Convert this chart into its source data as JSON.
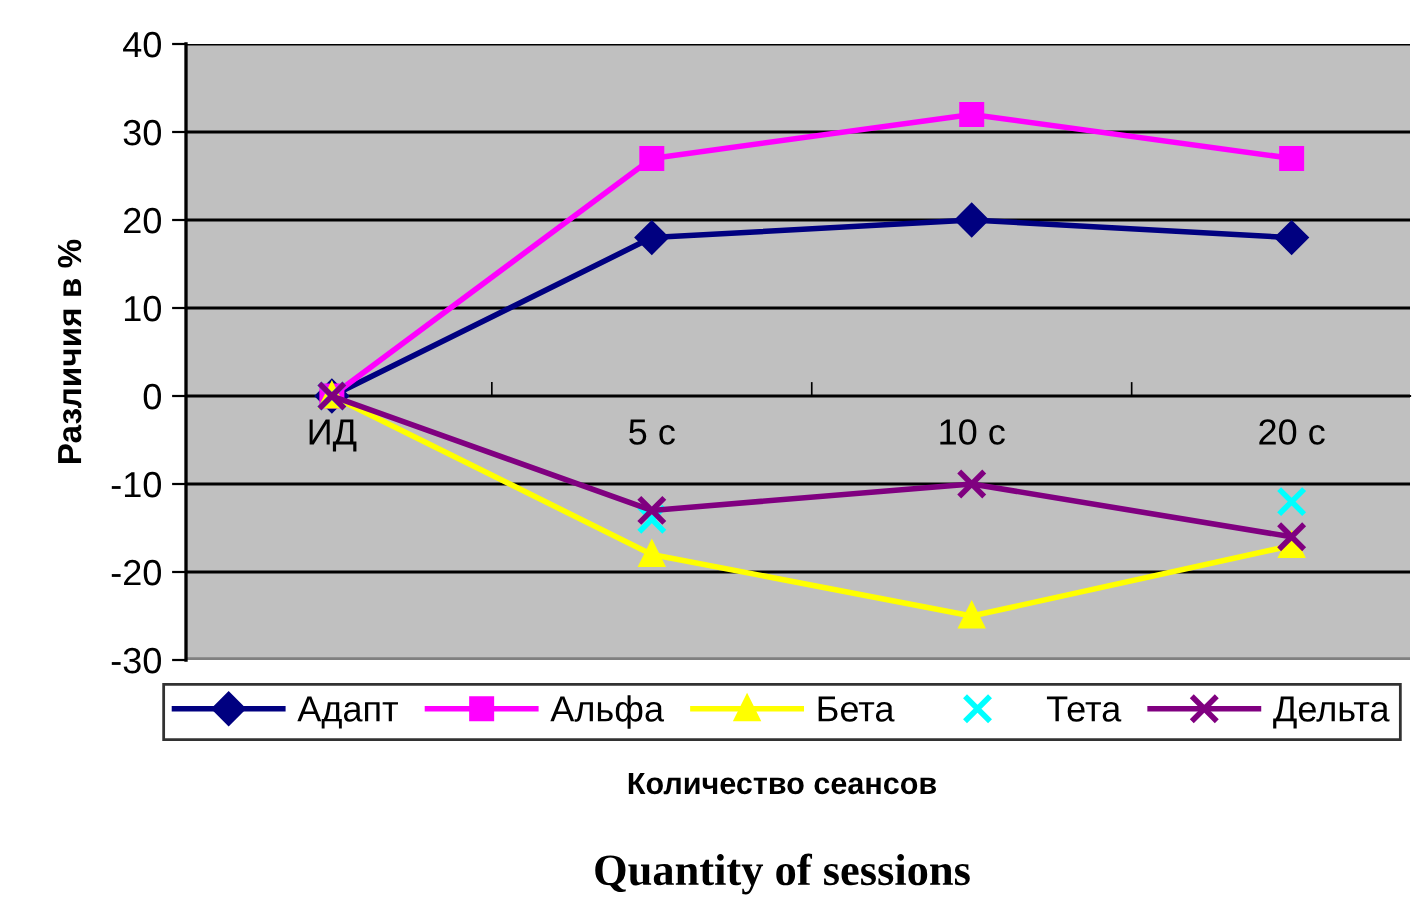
{
  "chart_data": {
    "type": "line",
    "ylabel": "Различия в %",
    "xlabel": "Количество сеансов",
    "annotations": [
      "Quantity of sessions"
    ],
    "categories": [
      "ИД",
      "5 с",
      "10 с",
      "20 с"
    ],
    "series": [
      {
        "name": "Адапт",
        "color": "#000080",
        "marker": "diamond",
        "values": [
          0,
          18,
          20,
          18
        ]
      },
      {
        "name": "Альфа",
        "color": "#ff00ff",
        "marker": "square",
        "values": [
          0,
          27,
          32,
          27
        ]
      },
      {
        "name": "Бета",
        "color": "#ffff00",
        "marker": "triangle",
        "values": [
          0,
          -18,
          -25,
          -17
        ]
      },
      {
        "name": "Тета",
        "color": "#00ffff",
        "type": "scatter",
        "marker": "cross",
        "values": [
          0,
          -14,
          null,
          -12
        ]
      },
      {
        "name": "Дельта",
        "color": "#800080",
        "marker": "cross",
        "values": [
          0,
          -13,
          -10,
          -16
        ]
      }
    ],
    "ylim": [
      -30,
      40
    ],
    "yticks": [
      -30,
      -20,
      -10,
      0,
      10,
      20,
      30,
      40
    ],
    "grid": "y",
    "legend": "bottom",
    "line_style": "solid"
  }
}
